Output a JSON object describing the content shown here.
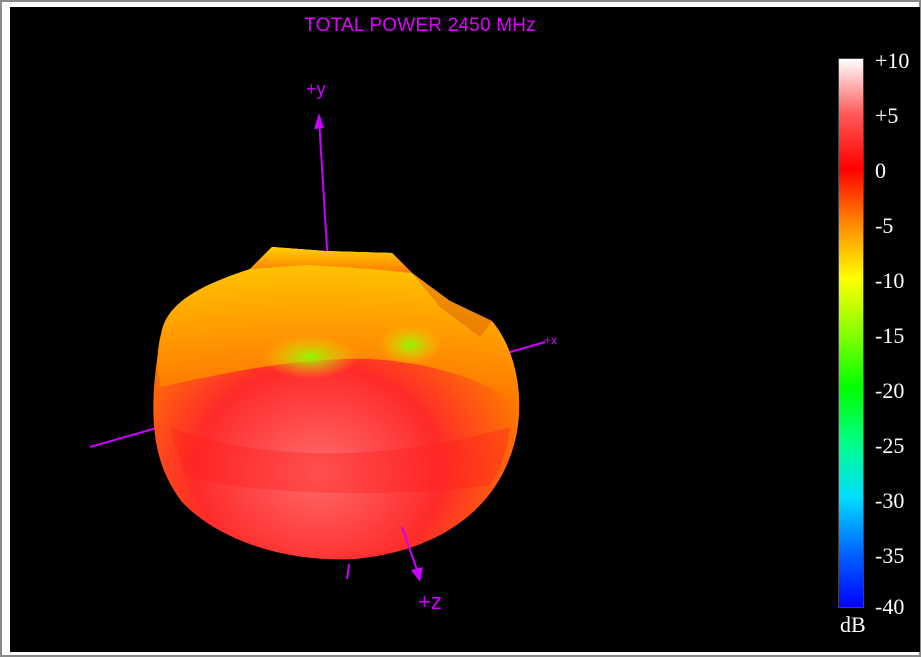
{
  "window": {
    "title": "TOTAL POWER 2450   MHz",
    "title_color": "#e000ff",
    "background_color": "#000000"
  },
  "axes": {
    "color": "#cc00ff",
    "y_label": "+y",
    "x_label": "+x",
    "z_label": "+z"
  },
  "color_scale": {
    "unit": "dB",
    "max": 10,
    "min": -40,
    "tick_labels": [
      "+10",
      "+5",
      "0",
      "-5",
      "-10",
      "-15",
      "-20",
      "-25",
      "-30",
      "-35",
      "-40"
    ],
    "gradient_stops": [
      {
        "value": 10,
        "color": "#ffffff"
      },
      {
        "value": 5,
        "color": "#ff5a5a"
      },
      {
        "value": 0,
        "color": "#ff0000"
      },
      {
        "value": -5,
        "color": "#ff8800"
      },
      {
        "value": -10,
        "color": "#ffff00"
      },
      {
        "value": -15,
        "color": "#88ff00"
      },
      {
        "value": -20,
        "color": "#00ff00"
      },
      {
        "value": -25,
        "color": "#00ff88"
      },
      {
        "value": -30,
        "color": "#00ddff"
      },
      {
        "value": -35,
        "color": "#0066ff"
      },
      {
        "value": -40,
        "color": "#0000ff"
      }
    ]
  },
  "pattern": {
    "surface_colors": {
      "bottom": "#ff6a6a",
      "mid": "#ff2a2a",
      "upper": "#ff7a00",
      "top_band": "#ffd000",
      "null_spots": "#88ff00"
    }
  }
}
